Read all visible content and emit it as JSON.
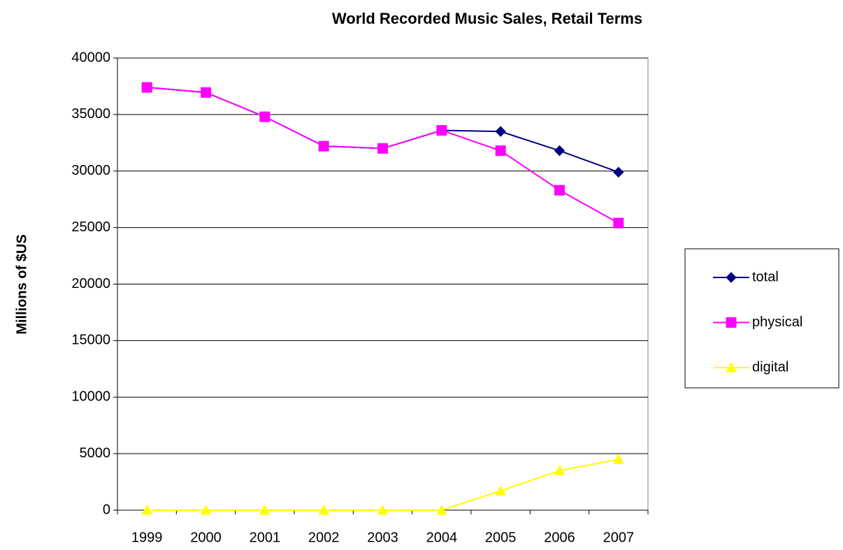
{
  "chart_data": {
    "type": "line",
    "title": "World Recorded Music Sales, Retail Terms",
    "y_label": "Millions of $US",
    "categories": [
      "1999",
      "2000",
      "2001",
      "2002",
      "2003",
      "2004",
      "2005",
      "2006",
      "2007"
    ],
    "series": [
      {
        "name": "total",
        "color": "#000080",
        "marker": "diamond",
        "values": [
          37400,
          36950,
          34800,
          32200,
          32000,
          33600,
          33500,
          31800,
          29900
        ]
      },
      {
        "name": "physical",
        "color": "#FF00FF",
        "marker": "square",
        "values": [
          37400,
          36950,
          34800,
          32200,
          32000,
          33600,
          31800,
          28300,
          25400
        ]
      },
      {
        "name": "digital",
        "color": "#FFFF00",
        "marker": "triangle",
        "values": [
          0,
          0,
          0,
          0,
          0,
          0,
          1700,
          3500,
          4500
        ]
      }
    ],
    "ylim": [
      0,
      40000
    ],
    "yticks": [
      0,
      5000,
      10000,
      15000,
      20000,
      25000,
      30000,
      35000,
      40000
    ],
    "grid": true,
    "legend": "right"
  }
}
